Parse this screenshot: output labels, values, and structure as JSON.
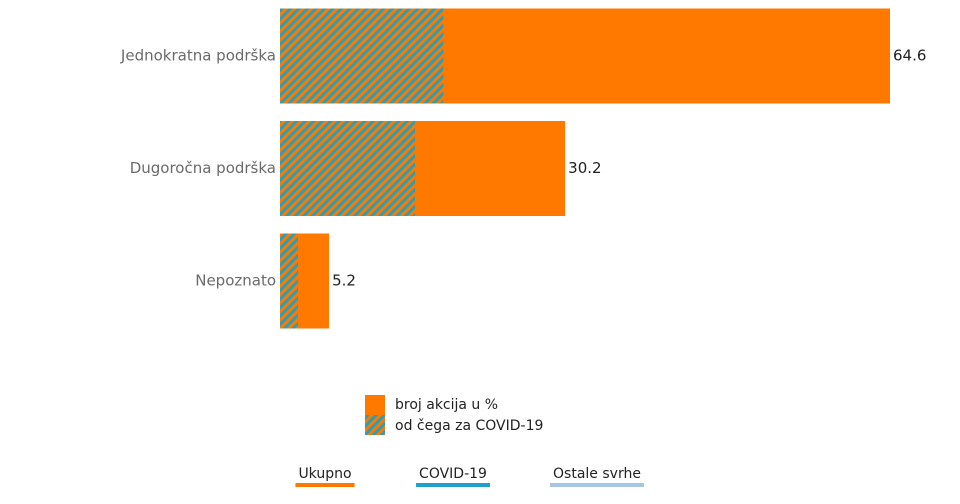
{
  "chart_data": {
    "type": "hbar-overlay",
    "categories": [
      "Jednokratna podrška",
      "Dugoročna podrška",
      "Nepoznato"
    ],
    "series": [
      {
        "name": "broj akcija u %",
        "color": "#ff7800",
        "values": [
          64.6,
          30.2,
          5.2
        ]
      },
      {
        "name": "od čega za COVID-19",
        "color": "#2a9fb5",
        "values": [
          17.3,
          14.3,
          1.9
        ]
      }
    ],
    "tabs": [
      {
        "label": "Ukupno",
        "color": "#ff7800"
      },
      {
        "label": "COVID-19",
        "color": "#1ea0c8"
      },
      {
        "label": "Ostale svrhe",
        "color": "#a8c4e4"
      }
    ]
  }
}
